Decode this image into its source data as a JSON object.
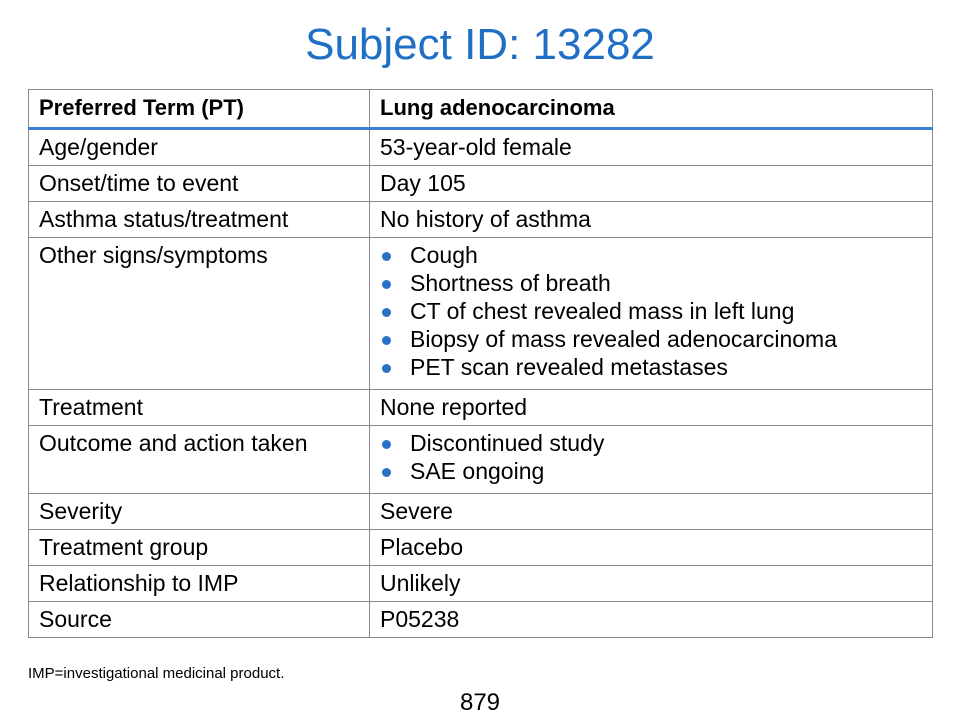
{
  "title": "Subject ID: 13282",
  "table": {
    "header": {
      "label": "Preferred Term (PT)",
      "value": "Lung adenocarcinoma"
    },
    "rows": [
      {
        "label": "Age/gender",
        "value": "53-year-old female"
      },
      {
        "label": "Onset/time to event",
        "value": "Day 105"
      },
      {
        "label": "Asthma status/treatment",
        "value": "No history of asthma"
      },
      {
        "label": "Other signs/symptoms",
        "items": [
          "Cough",
          "Shortness of breath",
          "CT of chest revealed mass in left lung",
          "Biopsy of mass revealed adenocarcinoma",
          "PET scan revealed metastases"
        ]
      },
      {
        "label": "Treatment",
        "value": "None reported"
      },
      {
        "label": "Outcome and action taken",
        "items": [
          "Discontinued study",
          "SAE ongoing"
        ]
      },
      {
        "label": "Severity",
        "value": "Severe"
      },
      {
        "label": "Treatment group",
        "value": "Placebo"
      },
      {
        "label": "Relationship to IMP",
        "value": "Unlikely"
      },
      {
        "label": "Source",
        "value": "P05238"
      }
    ]
  },
  "footnote": "IMP=investigational medicinal product.",
  "page_number": "879",
  "colors": {
    "title": "#1f6fc5",
    "header_rule": "#3a7fd0",
    "bullet": "#2c6fc6",
    "grid": "#8a8a8a"
  },
  "icons": {
    "bullet": "bullet-dot-icon"
  }
}
